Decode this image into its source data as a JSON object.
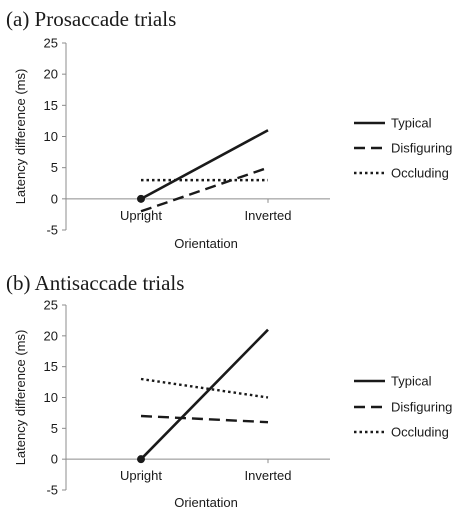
{
  "chart_data": [
    {
      "type": "line",
      "title": "(a) Prosaccade trials",
      "xlabel": "Orientation",
      "ylabel": "Latency difference (ms)",
      "categories": [
        "Upright",
        "Inverted"
      ],
      "ylim": [
        -5,
        25
      ],
      "yticks": [
        -5,
        0,
        5,
        10,
        15,
        20,
        25
      ],
      "grid": false,
      "legend_position": "right",
      "series": [
        {
          "name": "Typical",
          "values": [
            0,
            11
          ],
          "style": "solid"
        },
        {
          "name": "Disfiguring",
          "values": [
            -2,
            5
          ],
          "style": "dashed"
        },
        {
          "name": "Occluding",
          "values": [
            3,
            3
          ],
          "style": "dotted"
        }
      ],
      "marker_at": {
        "category": "Upright",
        "value": 0
      }
    },
    {
      "type": "line",
      "title": "(b) Antisaccade trials",
      "xlabel": "Orientation",
      "ylabel": "Latency difference (ms)",
      "categories": [
        "Upright",
        "Inverted"
      ],
      "ylim": [
        -5,
        25
      ],
      "yticks": [
        -5,
        0,
        5,
        10,
        15,
        20,
        25
      ],
      "grid": false,
      "legend_position": "right",
      "series": [
        {
          "name": "Typical",
          "values": [
            0,
            21
          ],
          "style": "solid"
        },
        {
          "name": "Disfiguring",
          "values": [
            7,
            6
          ],
          "style": "dashed"
        },
        {
          "name": "Occluding",
          "values": [
            13,
            10
          ],
          "style": "dotted"
        }
      ],
      "marker_at": {
        "category": "Upright",
        "value": 0
      }
    }
  ],
  "colors": {
    "line": "#1a1a1a",
    "axis": "#8c8c8c"
  }
}
